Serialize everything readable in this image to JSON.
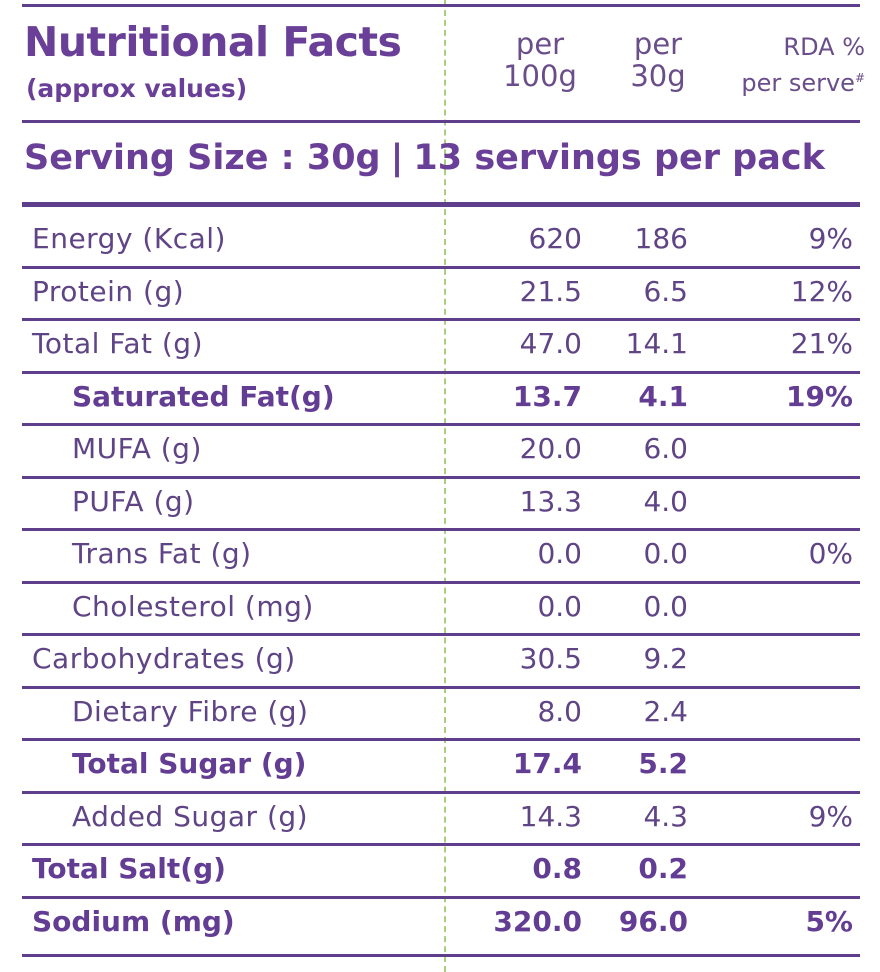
{
  "header": {
    "title": "Nutritional Facts",
    "subtitle": "(approx values)",
    "columns": [
      {
        "line1": "per",
        "line2": "100g"
      },
      {
        "line1": "per",
        "line2": "30g"
      },
      {
        "line1": "RDA %",
        "line2": "per serve",
        "mark": "#"
      }
    ]
  },
  "serving": {
    "size": "Serving Size : 30g",
    "separator": "|",
    "per_pack": "13 servings per pack"
  },
  "rows": [
    {
      "name": "Energy (Kcal)",
      "per100g": "620",
      "per30g": "186",
      "rda": "9%"
    },
    {
      "name": "Protein (g)",
      "per100g": "21.5",
      "per30g": "6.5",
      "rda": "12%"
    },
    {
      "name": "Total Fat (g)",
      "per100g": "47.0",
      "per30g": "14.1",
      "rda": "21%"
    },
    {
      "name": "Saturated Fat(g)",
      "per100g": "13.7",
      "per30g": "4.1",
      "rda": "19%"
    },
    {
      "name": "MUFA (g)",
      "per100g": "20.0",
      "per30g": "6.0",
      "rda": ""
    },
    {
      "name": "PUFA (g)",
      "per100g": "13.3",
      "per30g": "4.0",
      "rda": ""
    },
    {
      "name": "Trans Fat (g)",
      "per100g": "0.0",
      "per30g": "0.0",
      "rda": "0%"
    },
    {
      "name": "Cholesterol (mg)",
      "per100g": "0.0",
      "per30g": "0.0",
      "rda": ""
    },
    {
      "name": "Carbohydrates (g)",
      "per100g": "30.5",
      "per30g": "9.2",
      "rda": ""
    },
    {
      "name": "Dietary Fibre (g)",
      "per100g": "8.0",
      "per30g": "2.4",
      "rda": ""
    },
    {
      "name": "Total Sugar (g)",
      "per100g": "17.4",
      "per30g": "5.2",
      "rda": ""
    },
    {
      "name": "Added Sugar (g)",
      "per100g": "14.3",
      "per30g": "4.3",
      "rda": "9%"
    },
    {
      "name": "Total Salt(g)",
      "per100g": "0.8",
      "per30g": "0.2",
      "rda": ""
    },
    {
      "name": "Sodium (mg)",
      "per100g": "320.0",
      "per30g": "96.0",
      "rda": "5%"
    }
  ]
}
